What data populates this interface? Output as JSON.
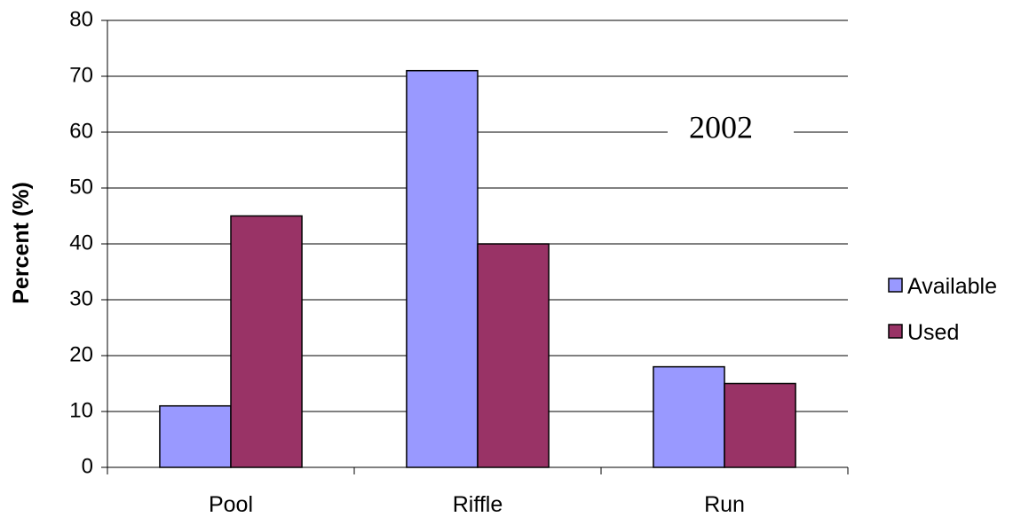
{
  "chart_data": {
    "type": "bar",
    "title": "",
    "xlabel": "",
    "ylabel": "Percent (%)",
    "ylim": [
      0,
      80
    ],
    "yticks": [
      0,
      10,
      20,
      30,
      40,
      50,
      60,
      70,
      80
    ],
    "categories": [
      "Pool",
      "Riffle",
      "Run"
    ],
    "series": [
      {
        "name": "Available",
        "color": "#9999ff",
        "values": [
          11,
          71,
          18
        ]
      },
      {
        "name": "Used",
        "color": "#993366",
        "values": [
          45,
          40,
          15
        ]
      }
    ],
    "annotation": "2002",
    "grid": true,
    "legend_position": "right"
  }
}
